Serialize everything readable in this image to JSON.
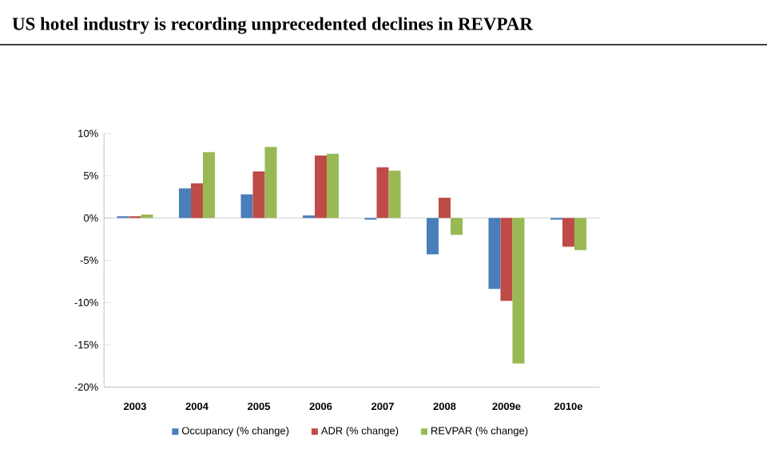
{
  "chart_data": {
    "type": "bar",
    "title": "US hotel industry is recording unprecedented declines in REVPAR",
    "categories": [
      "2003",
      "2004",
      "2005",
      "2006",
      "2007",
      "2008",
      "2009e",
      "2010e"
    ],
    "series": [
      {
        "name": "Occupancy (% change)",
        "color": "#4a7ebb",
        "values": [
          0.2,
          3.5,
          2.8,
          0.3,
          -0.2,
          -4.3,
          -8.4,
          -0.2
        ]
      },
      {
        "name": "ADR (% change)",
        "color": "#be4b48",
        "values": [
          0.2,
          4.1,
          5.5,
          7.4,
          6.0,
          2.4,
          -9.8,
          -3.4
        ]
      },
      {
        "name": "REVPAR (% change)",
        "color": "#98b954",
        "values": [
          0.4,
          7.8,
          8.4,
          7.6,
          5.6,
          -2.0,
          -17.2,
          -3.8
        ]
      }
    ],
    "ylim": [
      -20,
      10
    ],
    "yticks": [
      {
        "value": -20,
        "label": "-20%"
      },
      {
        "value": -15,
        "label": "-15%"
      },
      {
        "value": -10,
        "label": "-10%"
      },
      {
        "value": -5,
        "label": "-5%"
      },
      {
        "value": 0,
        "label": "0%"
      },
      {
        "value": 5,
        "label": "5%"
      },
      {
        "value": 10,
        "label": "10%"
      }
    ],
    "legend": "bottom"
  }
}
